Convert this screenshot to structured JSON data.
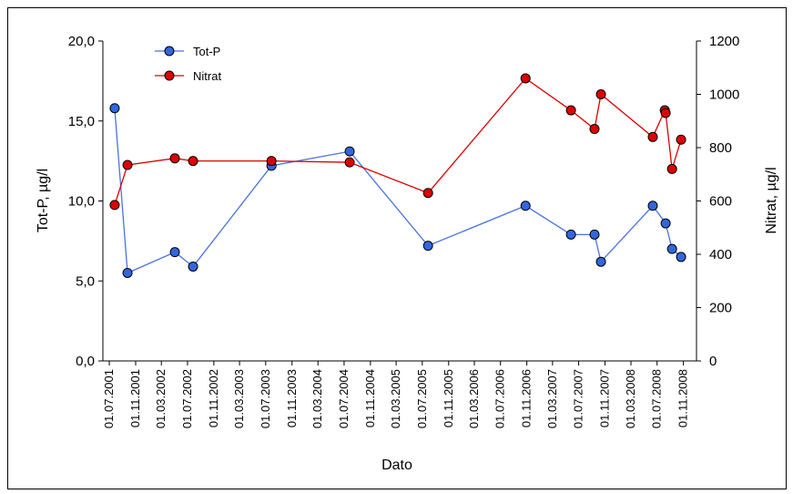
{
  "chart_data": {
    "type": "line",
    "x_label": "Dato",
    "y_label": "Tot-P, µg/l",
    "y2_label": "Nitrat, µg/l",
    "xlim": [
      "2001-06-01",
      "2009-01-01"
    ],
    "xticks": [
      {
        "value": "2001-07-01",
        "label": "01.07.2001"
      },
      {
        "value": "2001-11-01",
        "label": "01.11.2001"
      },
      {
        "value": "2002-03-01",
        "label": "01.03.2002"
      },
      {
        "value": "2002-07-01",
        "label": "01.07.2002"
      },
      {
        "value": "2002-11-01",
        "label": "01.11.2002"
      },
      {
        "value": "2003-03-01",
        "label": "01.03.2003"
      },
      {
        "value": "2003-07-01",
        "label": "01.07.2003"
      },
      {
        "value": "2003-11-01",
        "label": "01.11.2003"
      },
      {
        "value": "2004-03-01",
        "label": "01.03.2004"
      },
      {
        "value": "2004-07-01",
        "label": "01.07.2004"
      },
      {
        "value": "2004-11-01",
        "label": "01.11.2004"
      },
      {
        "value": "2005-03-01",
        "label": "01.03.2005"
      },
      {
        "value": "2005-07-01",
        "label": "01.07.2005"
      },
      {
        "value": "2005-11-01",
        "label": "01.11.2005"
      },
      {
        "value": "2006-03-01",
        "label": "01.03.2006"
      },
      {
        "value": "2006-07-01",
        "label": "01.07.2006"
      },
      {
        "value": "2006-11-01",
        "label": "01.11.2006"
      },
      {
        "value": "2007-03-01",
        "label": "01.03.2007"
      },
      {
        "value": "2007-07-01",
        "label": "01.07.2007"
      },
      {
        "value": "2007-11-01",
        "label": "01.11.2007"
      },
      {
        "value": "2008-03-01",
        "label": "01.03.2008"
      },
      {
        "value": "2008-07-01",
        "label": "01.07.2008"
      },
      {
        "value": "2008-11-01",
        "label": "01.11.2008"
      }
    ],
    "ylim": [
      0,
      20
    ],
    "yticks": [
      {
        "value": 0,
        "label": "0,0"
      },
      {
        "value": 5,
        "label": "5,0"
      },
      {
        "value": 10,
        "label": "10,0"
      },
      {
        "value": 15,
        "label": "15,0"
      },
      {
        "value": 20,
        "label": "20,0"
      }
    ],
    "y2lim": [
      0,
      1200
    ],
    "y2ticks": [
      0,
      200,
      400,
      600,
      800,
      1000,
      1200
    ],
    "legend": "top-left",
    "series": [
      {
        "name": "Tot-P",
        "color": "#3366dd",
        "line_color": "#4a72e0",
        "x": [
          "2001-07-26",
          "2001-09-24",
          "2002-05-03",
          "2002-07-27",
          "2003-07-28",
          "2004-07-27",
          "2005-07-28",
          "2006-10-26",
          "2007-05-26",
          "2007-09-13",
          "2007-10-13",
          "2008-06-11",
          "2008-08-10",
          "2008-09-09",
          "2008-10-21"
        ],
        "values": [
          15.8,
          5.5,
          6.8,
          5.9,
          12.2,
          13.1,
          7.2,
          9.7,
          7.9,
          7.9,
          6.2,
          9.7,
          8.6,
          7.0,
          6.5
        ]
      },
      {
        "name": "Nitrat",
        "color": "#dd0000",
        "line_color": "#dd0000",
        "axis": "y2",
        "x": [
          "2001-07-26",
          "2001-09-24",
          "2002-05-03",
          "2002-07-27",
          "2003-07-28",
          "2004-07-27",
          "2005-07-28",
          "2006-10-26",
          "2007-05-26",
          "2007-09-13",
          "2007-10-13",
          "2008-06-11",
          "2008-08-06",
          "2008-08-10",
          "2008-09-09",
          "2008-10-21"
        ],
        "values": [
          585,
          735,
          760,
          750,
          750,
          745,
          630,
          1060,
          940,
          870,
          1000,
          840,
          940,
          930,
          720,
          830
        ]
      }
    ]
  }
}
